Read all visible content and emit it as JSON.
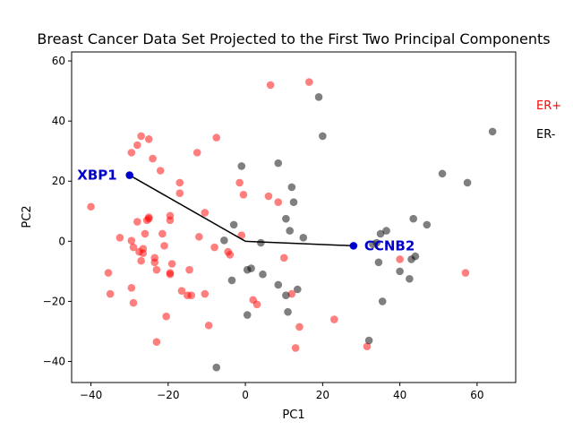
{
  "chart_data": {
    "type": "scatter",
    "title": "Breast Cancer Data Set Projected to the First Two Principal Components",
    "xlabel": "PC1",
    "ylabel": "PC2",
    "xlim": [
      -45,
      70
    ],
    "ylim": [
      -47,
      63
    ],
    "xticks": [
      -40,
      -20,
      0,
      20,
      40,
      60
    ],
    "yticks": [
      -40,
      -20,
      0,
      20,
      40,
      60
    ],
    "xtick_labels": [
      "−40",
      "−20",
      "0",
      "20",
      "40",
      "60"
    ],
    "ytick_labels": [
      "−40",
      "−20",
      "0",
      "20",
      "40",
      "60"
    ],
    "grid": false,
    "legend_position": "right",
    "series": [
      {
        "name": "ER+",
        "color": "#ff0000",
        "points": [
          [
            -40,
            11.5
          ],
          [
            -35.5,
            -10.5
          ],
          [
            -35,
            -17.5
          ],
          [
            -32.5,
            1.2
          ],
          [
            -29.5,
            29.5
          ],
          [
            -29.5,
            -15.5
          ],
          [
            -29.5,
            0.2
          ],
          [
            -29,
            -20.5
          ],
          [
            -29,
            -2
          ],
          [
            -28,
            32
          ],
          [
            -28,
            6.5
          ],
          [
            -27.5,
            -3.5
          ],
          [
            -27,
            35
          ],
          [
            -27,
            -6.5
          ],
          [
            -26.5,
            -2.5
          ],
          [
            -26.5,
            -4
          ],
          [
            -26,
            2.5
          ],
          [
            -25.5,
            7
          ],
          [
            -25,
            8
          ],
          [
            -25,
            7.5
          ],
          [
            -25,
            34
          ],
          [
            -24,
            27.5
          ],
          [
            -23.5,
            -5.5
          ],
          [
            -23.5,
            -7
          ],
          [
            -23,
            -9.5
          ],
          [
            -23,
            -33.5
          ],
          [
            -22,
            23.5
          ],
          [
            -21.5,
            2.5
          ],
          [
            -21,
            -1.5
          ],
          [
            -20.5,
            -25
          ],
          [
            -19.5,
            8.5
          ],
          [
            -19.5,
            7
          ],
          [
            -19.5,
            -10.5
          ],
          [
            -19.5,
            -11
          ],
          [
            -19,
            -7.5
          ],
          [
            -17,
            19.5
          ],
          [
            -17,
            16
          ],
          [
            -16.5,
            -16.5
          ],
          [
            -15,
            -18
          ],
          [
            -14.5,
            -9.5
          ],
          [
            -14,
            -18
          ],
          [
            -12.5,
            29.5
          ],
          [
            -12,
            1.5
          ],
          [
            -10.5,
            9.5
          ],
          [
            -10.5,
            -17.5
          ],
          [
            -9.5,
            -28
          ],
          [
            -8,
            -2
          ],
          [
            -7.5,
            34.5
          ],
          [
            -4.5,
            -3.5
          ],
          [
            -4,
            -4.5
          ],
          [
            -1.5,
            19.5
          ],
          [
            -1,
            2
          ],
          [
            -0.5,
            15.5
          ],
          [
            2,
            -19.5
          ],
          [
            3,
            -21
          ],
          [
            6,
            15
          ],
          [
            6.5,
            52
          ],
          [
            8.5,
            13
          ],
          [
            10,
            -5.5
          ],
          [
            12,
            -17.5
          ],
          [
            13,
            -35.5
          ],
          [
            14,
            -28.5
          ],
          [
            16.5,
            53
          ],
          [
            23,
            -26
          ],
          [
            31.5,
            -35
          ],
          [
            40,
            -6
          ],
          [
            57,
            -10.5
          ]
        ]
      },
      {
        "name": "ER-",
        "color": "#000000",
        "points": [
          [
            -7.5,
            -42
          ],
          [
            -5.5,
            0.3
          ],
          [
            -3.5,
            -13
          ],
          [
            -3,
            5.5
          ],
          [
            -1,
            25
          ],
          [
            0.5,
            -9.5
          ],
          [
            0.5,
            -24.5
          ],
          [
            1.5,
            -9
          ],
          [
            4,
            -0.5
          ],
          [
            4.5,
            -11
          ],
          [
            8.5,
            26
          ],
          [
            8.5,
            -14.5
          ],
          [
            10.5,
            -18
          ],
          [
            10.5,
            7.5
          ],
          [
            11,
            -23.5
          ],
          [
            11.5,
            3.5
          ],
          [
            12,
            18
          ],
          [
            12.5,
            13
          ],
          [
            13.5,
            -16
          ],
          [
            15,
            1.2
          ],
          [
            19,
            48
          ],
          [
            20,
            35
          ],
          [
            32,
            -33
          ],
          [
            33,
            -1
          ],
          [
            34,
            -0.5
          ],
          [
            34.5,
            -7
          ],
          [
            35,
            2.5
          ],
          [
            35.5,
            -20
          ],
          [
            36.5,
            3.5
          ],
          [
            40,
            -10
          ],
          [
            42.5,
            -12.5
          ],
          [
            43,
            -6
          ],
          [
            43.5,
            7.5
          ],
          [
            44,
            -5
          ],
          [
            47,
            5.5
          ],
          [
            51,
            22.5
          ],
          [
            57.5,
            19.5
          ],
          [
            64,
            36.5
          ]
        ]
      }
    ],
    "loadings": {
      "origin": [
        0,
        0
      ],
      "vectors": [
        {
          "name": "XBP1",
          "x": -30,
          "y": 22
        },
        {
          "name": "CCNB2",
          "x": 28,
          "y": -1.5
        }
      ],
      "color": "#0000cc"
    }
  }
}
